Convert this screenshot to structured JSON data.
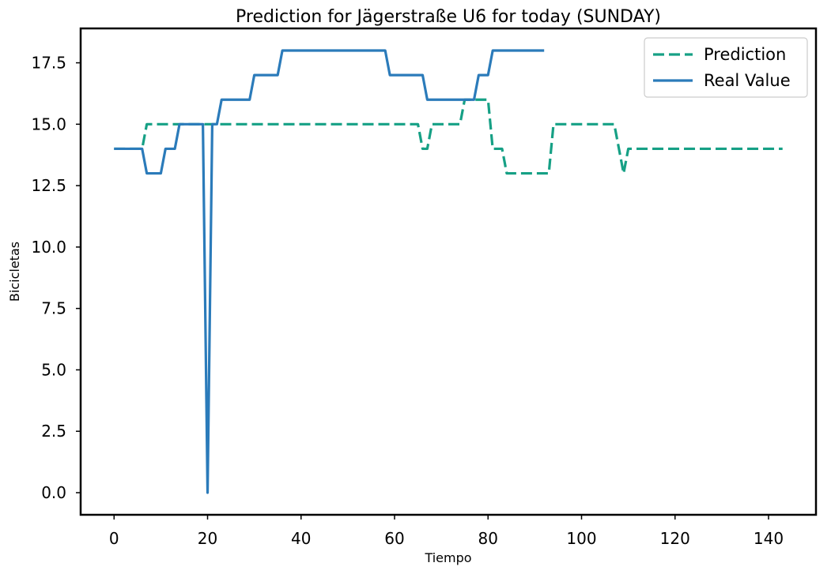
{
  "chart_data": {
    "type": "line",
    "title": "Prediction for Jägerstraße U6 for today (SUNDAY)",
    "xlabel": "Tiempo",
    "ylabel": "Bicicletas",
    "xlim": [
      -7.15,
      150.15
    ],
    "ylim": [
      -0.9,
      18.9
    ],
    "xticks": [
      0,
      20,
      40,
      60,
      80,
      100,
      120,
      140
    ],
    "yticks": [
      "0.0",
      "2.5",
      "5.0",
      "7.5",
      "10.0",
      "12.5",
      "15.0",
      "17.5"
    ],
    "grid": false,
    "legend": "top-right",
    "series": [
      {
        "name": "Prediction",
        "color": "#16a085",
        "style": "dashed",
        "points": [
          [
            0,
            14
          ],
          [
            6,
            14
          ],
          [
            7,
            15
          ],
          [
            65,
            15
          ],
          [
            66,
            14
          ],
          [
            67,
            14
          ],
          [
            68,
            15
          ],
          [
            74,
            15
          ],
          [
            75,
            16
          ],
          [
            80,
            16
          ],
          [
            81,
            14
          ],
          [
            83,
            14
          ],
          [
            84,
            13
          ],
          [
            93,
            13
          ],
          [
            94,
            15
          ],
          [
            107,
            15
          ],
          [
            109,
            13
          ],
          [
            110,
            14
          ],
          [
            143,
            14
          ]
        ]
      },
      {
        "name": "Real Value",
        "color": "#2b7bba",
        "style": "solid",
        "points": [
          [
            0,
            14
          ],
          [
            6,
            14
          ],
          [
            7,
            13
          ],
          [
            10,
            13
          ],
          [
            11,
            14
          ],
          [
            13,
            14
          ],
          [
            14,
            15
          ],
          [
            19,
            15
          ],
          [
            20,
            0
          ],
          [
            21,
            15
          ],
          [
            22,
            15
          ],
          [
            23,
            16
          ],
          [
            29,
            16
          ],
          [
            30,
            17
          ],
          [
            35,
            17
          ],
          [
            36,
            18
          ],
          [
            58,
            18
          ],
          [
            59,
            17
          ],
          [
            66,
            17
          ],
          [
            67,
            16
          ],
          [
            77,
            16
          ],
          [
            78,
            17
          ],
          [
            80,
            17
          ],
          [
            81,
            18
          ],
          [
            92,
            18
          ]
        ]
      }
    ]
  }
}
